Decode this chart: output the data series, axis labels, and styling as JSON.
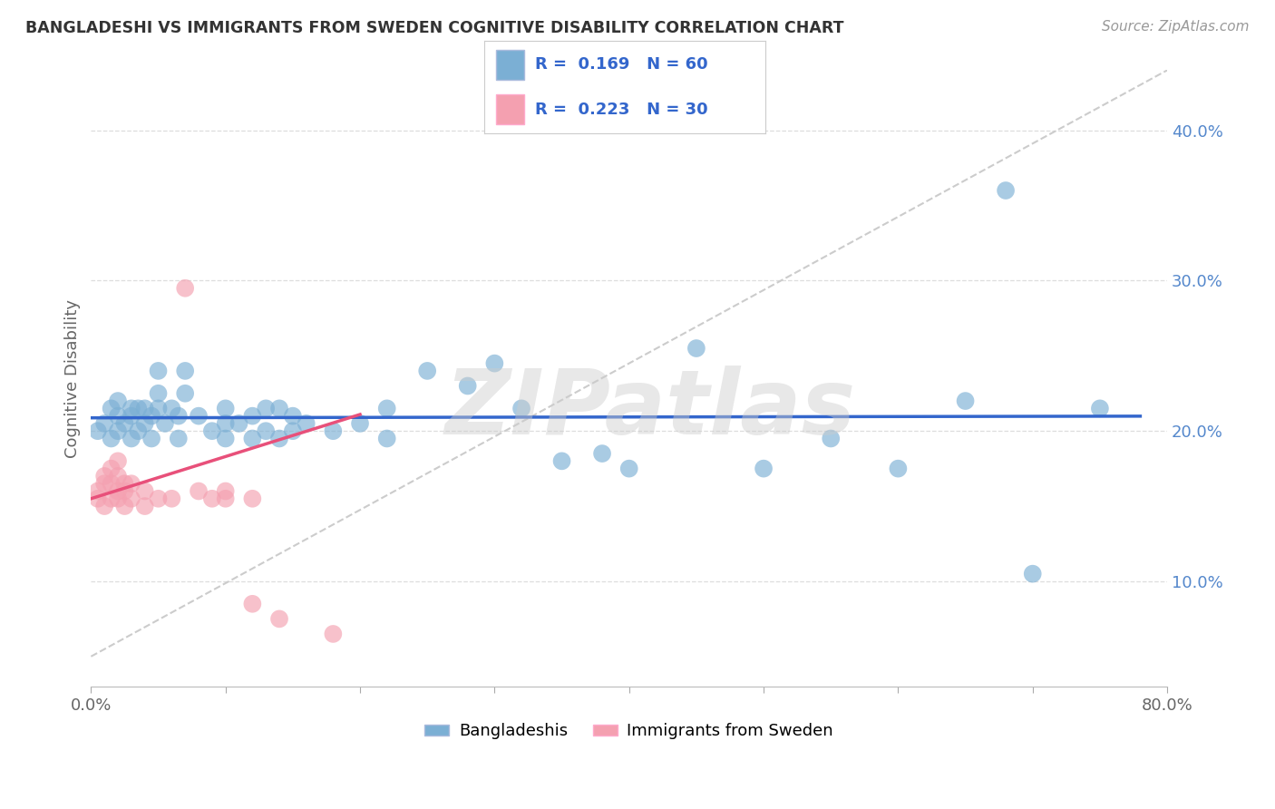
{
  "title": "BANGLADESHI VS IMMIGRANTS FROM SWEDEN COGNITIVE DISABILITY CORRELATION CHART",
  "source": "Source: ZipAtlas.com",
  "ylabel": "Cognitive Disability",
  "xlabel": "",
  "watermark": "ZIPatlas",
  "legend_label1": "Bangladeshis",
  "legend_label2": "Immigrants from Sweden",
  "R1": 0.169,
  "N1": 60,
  "R2": 0.223,
  "N2": 30,
  "color1": "#7BAFD4",
  "color2": "#F4A0B0",
  "trendline_color1": "#3366CC",
  "trendline_color2": "#E8507A",
  "xlim": [
    0.0,
    0.8
  ],
  "ylim": [
    0.03,
    0.44
  ],
  "xtick_positions": [
    0.0,
    0.1,
    0.2,
    0.3,
    0.4,
    0.5,
    0.6,
    0.7,
    0.8
  ],
  "xtick_labels": [
    "0.0%",
    "",
    "",
    "",
    "",
    "",
    "",
    "",
    "80.0%"
  ],
  "ytick_positions": [
    0.1,
    0.2,
    0.3,
    0.4
  ],
  "ytick_labels": [
    "10.0%",
    "20.0%",
    "30.0%",
    "40.0%"
  ],
  "blue_points": [
    [
      0.005,
      0.2
    ],
    [
      0.01,
      0.205
    ],
    [
      0.015,
      0.195
    ],
    [
      0.015,
      0.215
    ],
    [
      0.02,
      0.2
    ],
    [
      0.02,
      0.21
    ],
    [
      0.02,
      0.22
    ],
    [
      0.025,
      0.205
    ],
    [
      0.03,
      0.195
    ],
    [
      0.03,
      0.21
    ],
    [
      0.03,
      0.215
    ],
    [
      0.035,
      0.2
    ],
    [
      0.035,
      0.215
    ],
    [
      0.04,
      0.205
    ],
    [
      0.04,
      0.215
    ],
    [
      0.045,
      0.195
    ],
    [
      0.045,
      0.21
    ],
    [
      0.05,
      0.215
    ],
    [
      0.05,
      0.225
    ],
    [
      0.05,
      0.24
    ],
    [
      0.055,
      0.205
    ],
    [
      0.06,
      0.215
    ],
    [
      0.065,
      0.195
    ],
    [
      0.065,
      0.21
    ],
    [
      0.07,
      0.225
    ],
    [
      0.07,
      0.24
    ],
    [
      0.08,
      0.21
    ],
    [
      0.09,
      0.2
    ],
    [
      0.1,
      0.195
    ],
    [
      0.1,
      0.205
    ],
    [
      0.1,
      0.215
    ],
    [
      0.11,
      0.205
    ],
    [
      0.12,
      0.195
    ],
    [
      0.12,
      0.21
    ],
    [
      0.13,
      0.2
    ],
    [
      0.13,
      0.215
    ],
    [
      0.14,
      0.195
    ],
    [
      0.14,
      0.215
    ],
    [
      0.15,
      0.2
    ],
    [
      0.15,
      0.21
    ],
    [
      0.16,
      0.205
    ],
    [
      0.18,
      0.2
    ],
    [
      0.2,
      0.205
    ],
    [
      0.22,
      0.195
    ],
    [
      0.22,
      0.215
    ],
    [
      0.25,
      0.24
    ],
    [
      0.28,
      0.23
    ],
    [
      0.3,
      0.245
    ],
    [
      0.32,
      0.215
    ],
    [
      0.35,
      0.18
    ],
    [
      0.38,
      0.185
    ],
    [
      0.4,
      0.175
    ],
    [
      0.45,
      0.255
    ],
    [
      0.5,
      0.175
    ],
    [
      0.55,
      0.195
    ],
    [
      0.6,
      0.175
    ],
    [
      0.65,
      0.22
    ],
    [
      0.68,
      0.36
    ],
    [
      0.7,
      0.105
    ],
    [
      0.75,
      0.215
    ]
  ],
  "pink_points": [
    [
      0.005,
      0.155
    ],
    [
      0.005,
      0.16
    ],
    [
      0.01,
      0.15
    ],
    [
      0.01,
      0.165
    ],
    [
      0.01,
      0.17
    ],
    [
      0.015,
      0.155
    ],
    [
      0.015,
      0.165
    ],
    [
      0.015,
      0.175
    ],
    [
      0.02,
      0.155
    ],
    [
      0.02,
      0.16
    ],
    [
      0.02,
      0.17
    ],
    [
      0.02,
      0.18
    ],
    [
      0.025,
      0.15
    ],
    [
      0.025,
      0.16
    ],
    [
      0.025,
      0.165
    ],
    [
      0.03,
      0.155
    ],
    [
      0.03,
      0.165
    ],
    [
      0.04,
      0.15
    ],
    [
      0.04,
      0.16
    ],
    [
      0.05,
      0.155
    ],
    [
      0.06,
      0.155
    ],
    [
      0.07,
      0.295
    ],
    [
      0.08,
      0.16
    ],
    [
      0.09,
      0.155
    ],
    [
      0.1,
      0.155
    ],
    [
      0.1,
      0.16
    ],
    [
      0.12,
      0.155
    ],
    [
      0.12,
      0.085
    ],
    [
      0.14,
      0.075
    ],
    [
      0.18,
      0.065
    ]
  ],
  "trendline_blue_xrange": [
    0.0,
    0.78
  ],
  "trendline_pink_xrange": [
    0.0,
    0.2
  ]
}
